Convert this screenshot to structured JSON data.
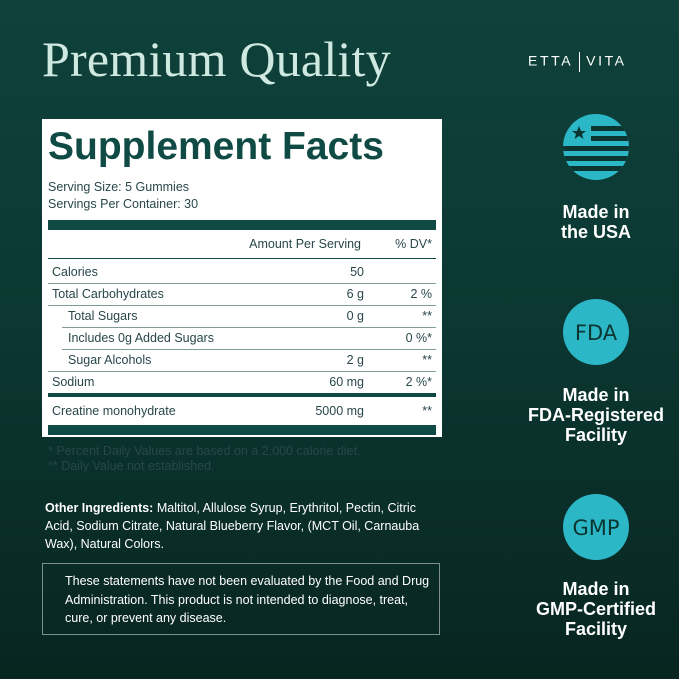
{
  "header": {
    "title": "Premium Quality",
    "brand": [
      "ETTA",
      "VITA"
    ]
  },
  "facts": {
    "title": "Supplement Facts",
    "serving_size": "Serving Size: 5 Gummies",
    "servings": "Servings Per Container: 30",
    "columns": [
      "Amount Per Serving",
      "% DV*"
    ],
    "rows": [
      {
        "name": "Calories",
        "amount": "50"
      },
      {
        "name": "Total Carbohydrates",
        "amount": "6 g",
        "dv": "2 %"
      },
      {
        "name": "Total Sugars",
        "amount": "0 g",
        "dv": "**"
      },
      {
        "name": "Includes 0g Added Sugars",
        "dv": "0 %*"
      },
      {
        "name": "Sugar Alcohols",
        "amount": "2 g",
        "dv": "**"
      },
      {
        "name": "Sodium",
        "amount": "60 mg",
        "dv": "2 %*"
      },
      {
        "name": "Creatine monohydrate",
        "amount": "5000 mg",
        "dv": "**"
      }
    ],
    "footnotes": [
      "* Percent Daily Values are based on a 2,000 calorie diet.",
      "** Daily Value not established."
    ]
  },
  "ingredients": {
    "label": "Other Ingredients:",
    "text": "Maltitol, Allulose Syrup, Erythritol, Pectin, Citric Acid, Sodium Citrate, Natural Blueberry Flavor, (MCT Oil, Carnauba Wax), Natural Colors."
  },
  "disclaimer": "These statements have not been evaluated by the Food and Drug Administration. This product is not intended to diagnose, treat, cure, or prevent any disease.",
  "badges": [
    {
      "label": [
        "Made in",
        "the USA"
      ]
    },
    {
      "icon": "FDA",
      "label": [
        "Made in",
        "FDA-Registered",
        "Facility"
      ]
    },
    {
      "icon": "GMP",
      "label": [
        "Made in",
        "GMP-Certified",
        "Facility"
      ]
    }
  ]
}
